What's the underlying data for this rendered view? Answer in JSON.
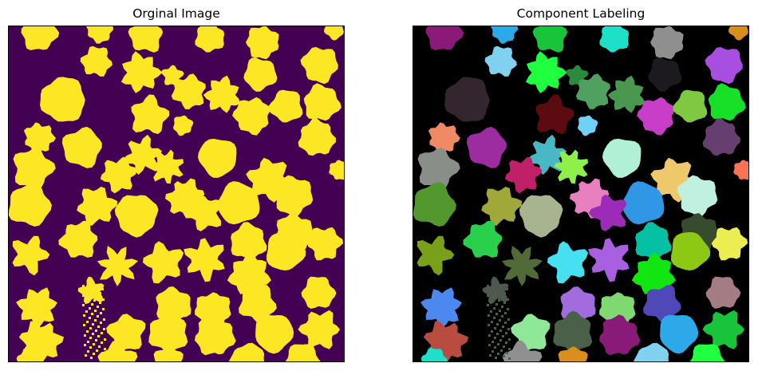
{
  "panels": {
    "left": {
      "title": "Orginal Image",
      "background": "#440154",
      "blob_color": "#fde725",
      "edge_color": "#21918c"
    },
    "right": {
      "title": "Component Labeling",
      "background": "#000000"
    }
  },
  "component_colors": [
    "#8a1a78",
    "#2da8e8",
    "#17c43a",
    "#1ee0c8",
    "#8f8f8f",
    "#d98e1e",
    "#80d0f0",
    "#20ff40",
    "#2d8a3c",
    "#50a060",
    "#4a9850",
    "#1c1a1e",
    "#a84ee0",
    "#33262e",
    "#5c0c10",
    "#70d0f8",
    "#c93ec8",
    "#7fc840",
    "#16e028",
    "#f08a64",
    "#9c2ca0",
    "#48b8c4",
    "#8ef048",
    "#b0f0d4",
    "#f0c86c",
    "#663e70",
    "#8a8e88",
    "#c02068",
    "#e87fbf",
    "#3096e6",
    "#c0f0e0",
    "#f87454",
    "#52982e",
    "#a0a83a",
    "#a8b490",
    "#9c2cb8",
    "#06c0a4",
    "#364c2c",
    "#7aa01a",
    "#2ad04c",
    "#526a38",
    "#46e0f0",
    "#a860e0",
    "#12e610",
    "#8cc814",
    "#ebed50",
    "#4c88f0",
    "#4e5850",
    "#a26cde",
    "#80d870",
    "#5048b8",
    "#a47c84",
    "#b84c40",
    "#8ee898",
    "#4a6048"
  ]
}
